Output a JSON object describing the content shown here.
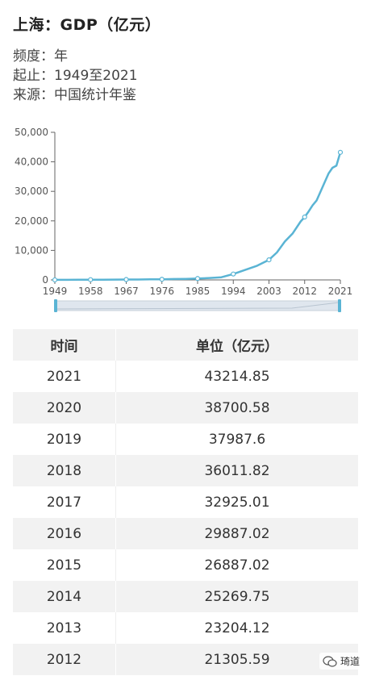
{
  "header": {
    "title": "上海：GDP（亿元）",
    "frequency": "频度：年",
    "range": "起止：1949至2021",
    "source": "来源：中国统计年鉴"
  },
  "chart_data": {
    "type": "line",
    "title": "",
    "xlabel": "",
    "ylabel": "",
    "xlim": [
      1949,
      2021
    ],
    "ylim": [
      0,
      50000
    ],
    "x_ticks": [
      "1949",
      "1958",
      "1967",
      "1976",
      "1985",
      "1994",
      "2003",
      "2012",
      "2021"
    ],
    "y_ticks": [
      "0",
      "10,000",
      "20,000",
      "30,000",
      "40,000",
      "50,000"
    ],
    "grid": false,
    "legend": "none",
    "color": "#5ab4d4",
    "series": [
      {
        "x": [
          1949,
          1952,
          1955,
          1958,
          1961,
          1964,
          1967,
          1970,
          1973,
          1976,
          1979,
          1982,
          1985,
          1988,
          1991,
          1994,
          1997,
          2000,
          2003,
          2005,
          2007,
          2009,
          2011,
          2012,
          2013,
          2014,
          2015,
          2016,
          2017,
          2018,
          2019,
          2020,
          2021
        ],
        "y": [
          20,
          40,
          55,
          80,
          90,
          110,
          130,
          150,
          190,
          210,
          290,
          350,
          470,
          650,
          900,
          2000,
          3400,
          4800,
          6800,
          9300,
          13000,
          15800,
          19800,
          21305.59,
          23204.12,
          25269.75,
          26887.02,
          29887.02,
          32925.01,
          36011.82,
          37987.6,
          38700.58,
          43214.85
        ]
      }
    ],
    "markers_at": [
      1949,
      1958,
      1967,
      1976,
      1985,
      1994,
      2003,
      2012,
      2021
    ]
  },
  "table": {
    "col_time": "时间",
    "col_value": "单位（亿元）",
    "rows": [
      {
        "year": "2021",
        "value": "43214.85"
      },
      {
        "year": "2020",
        "value": "38700.58"
      },
      {
        "year": "2019",
        "value": "37987.6"
      },
      {
        "year": "2018",
        "value": "36011.82"
      },
      {
        "year": "2017",
        "value": "32925.01"
      },
      {
        "year": "2016",
        "value": "29887.02"
      },
      {
        "year": "2015",
        "value": "26887.02"
      },
      {
        "year": "2014",
        "value": "25269.75"
      },
      {
        "year": "2013",
        "value": "23204.12"
      },
      {
        "year": "2012",
        "value": "21305.59"
      }
    ]
  },
  "watermark": {
    "text": "琦道",
    "icon": "wechat-icon"
  }
}
